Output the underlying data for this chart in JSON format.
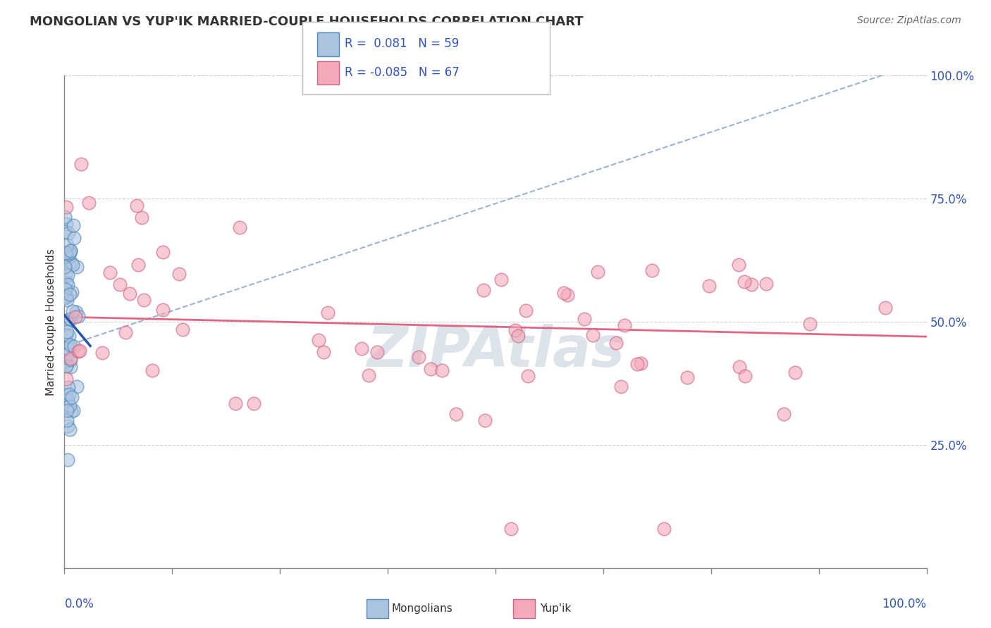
{
  "title": "MONGOLIAN VS YUP'IK MARRIED-COUPLE HOUSEHOLDS CORRELATION CHART",
  "source": "Source: ZipAtlas.com",
  "ylabel": "Married-couple Households",
  "r_mongolian": 0.081,
  "n_mongolian": 59,
  "r_yupik": -0.085,
  "n_yupik": 67,
  "background_color": "#ffffff",
  "blue_fill": "#aac4e0",
  "blue_edge": "#5588bb",
  "pink_fill": "#f4a8b8",
  "pink_edge": "#cc6688",
  "trend_blue_dashed": "#7799cc",
  "trend_blue_solid": "#2255aa",
  "trend_pink_solid": "#dd5577",
  "grid_color": "#cccccc",
  "watermark_color": "#d8dfe8",
  "axis_label_color": "#3355bb",
  "text_color": "#333333",
  "legend_r_color": "#3355bb",
  "legend_neg_color": "#dd2255"
}
